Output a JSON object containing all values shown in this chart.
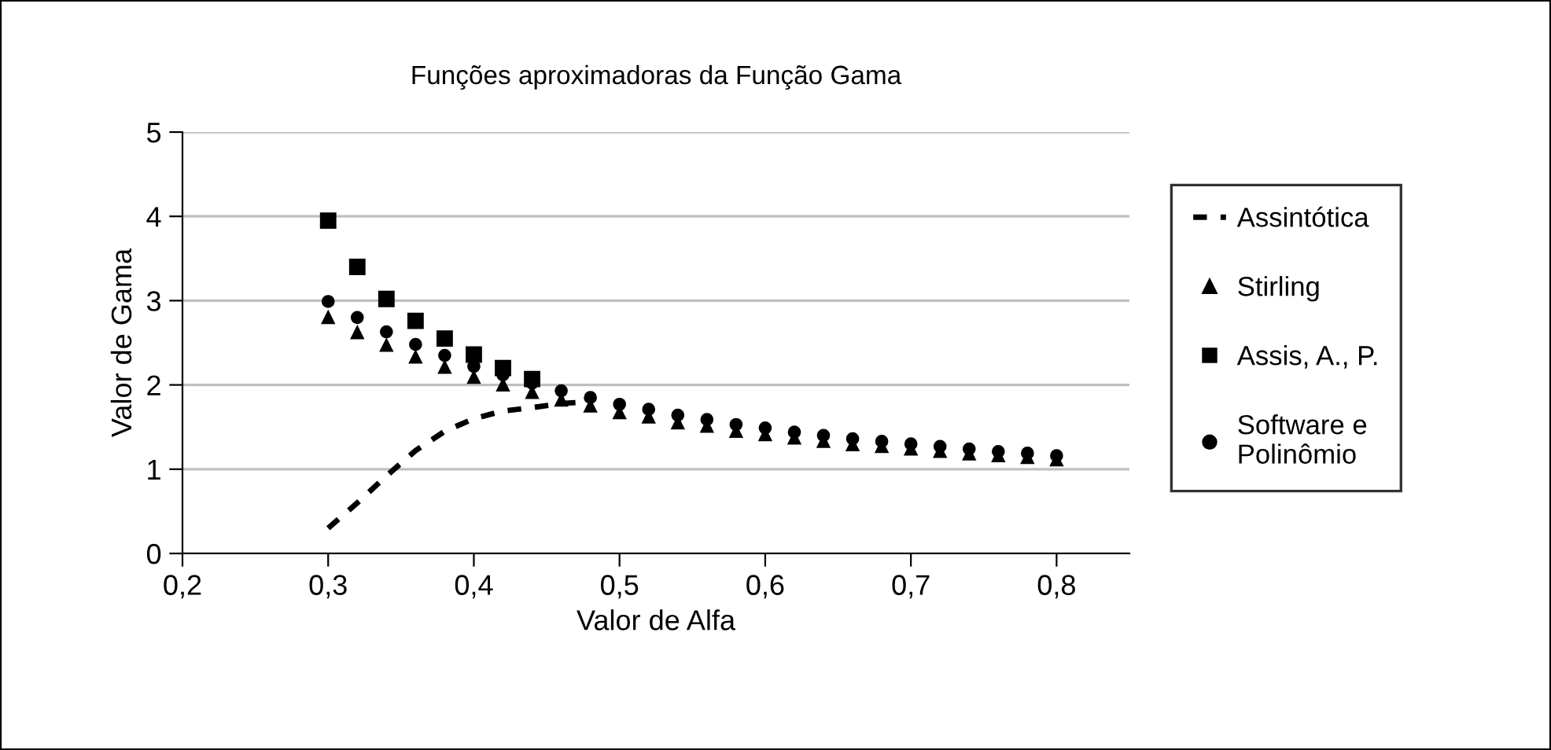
{
  "chart_data": {
    "type": "scatter",
    "title": "Funções aproximadoras da Função Gama",
    "xlabel": "Valor de Alfa",
    "ylabel": "Valor de Gama",
    "x": [
      0.3,
      0.32,
      0.34,
      0.36,
      0.38,
      0.4,
      0.42,
      0.44,
      0.46,
      0.48,
      0.5,
      0.52,
      0.54,
      0.56,
      0.58,
      0.6,
      0.62,
      0.64,
      0.66,
      0.68,
      0.7,
      0.72,
      0.74,
      0.76,
      0.78,
      0.8
    ],
    "series": [
      {
        "name": "Assintótica",
        "type": "line",
        "line_style": "dashed",
        "color": "#000000",
        "marker": "none",
        "values": [
          0.3,
          0.6,
          0.92,
          1.22,
          1.45,
          1.6,
          1.69,
          1.73,
          1.78,
          1.8,
          null,
          null,
          null,
          null,
          null,
          null,
          null,
          null,
          null,
          null,
          null,
          null,
          null,
          null,
          null,
          null
        ]
      },
      {
        "name": "Stirling",
        "color": "#000000",
        "marker": "triangle",
        "values": [
          2.8,
          2.62,
          2.47,
          2.33,
          2.21,
          2.09,
          2.0,
          1.91,
          1.82,
          1.75,
          1.67,
          1.62,
          1.55,
          1.51,
          1.45,
          1.41,
          1.37,
          1.33,
          1.29,
          1.27,
          1.24,
          1.21,
          1.18,
          1.16,
          1.14,
          1.11
        ]
      },
      {
        "name": "Assis, A., P.",
        "color": "#000000",
        "marker": "square",
        "values": [
          3.95,
          3.4,
          3.02,
          2.76,
          2.55,
          2.36,
          2.2,
          2.07,
          null,
          null,
          null,
          null,
          null,
          null,
          null,
          null,
          null,
          null,
          null,
          null,
          null,
          null,
          null,
          null,
          null,
          null
        ]
      },
      {
        "name": "Software e\nPolinômio",
        "color": "#000000",
        "marker": "circle",
        "values": [
          2.99,
          2.8,
          2.63,
          2.48,
          2.35,
          2.22,
          2.12,
          2.02,
          1.93,
          1.85,
          1.77,
          1.71,
          1.64,
          1.59,
          1.53,
          1.49,
          1.44,
          1.4,
          1.36,
          1.33,
          1.3,
          1.27,
          1.24,
          1.21,
          1.19,
          1.16
        ]
      }
    ],
    "xlim": [
      0.2,
      0.85
    ],
    "xticks": [
      {
        "value": 0.2,
        "label": "0,2"
      },
      {
        "value": 0.3,
        "label": "0,3"
      },
      {
        "value": 0.4,
        "label": "0,4"
      },
      {
        "value": 0.5,
        "label": "0,5"
      },
      {
        "value": 0.6,
        "label": "0,6"
      },
      {
        "value": 0.7,
        "label": "0,7"
      },
      {
        "value": 0.8,
        "label": "0,8"
      }
    ],
    "ylim": [
      0,
      5
    ],
    "yticks": [
      0,
      1,
      2,
      3,
      4,
      5
    ],
    "grid": "y",
    "legend": "right"
  }
}
